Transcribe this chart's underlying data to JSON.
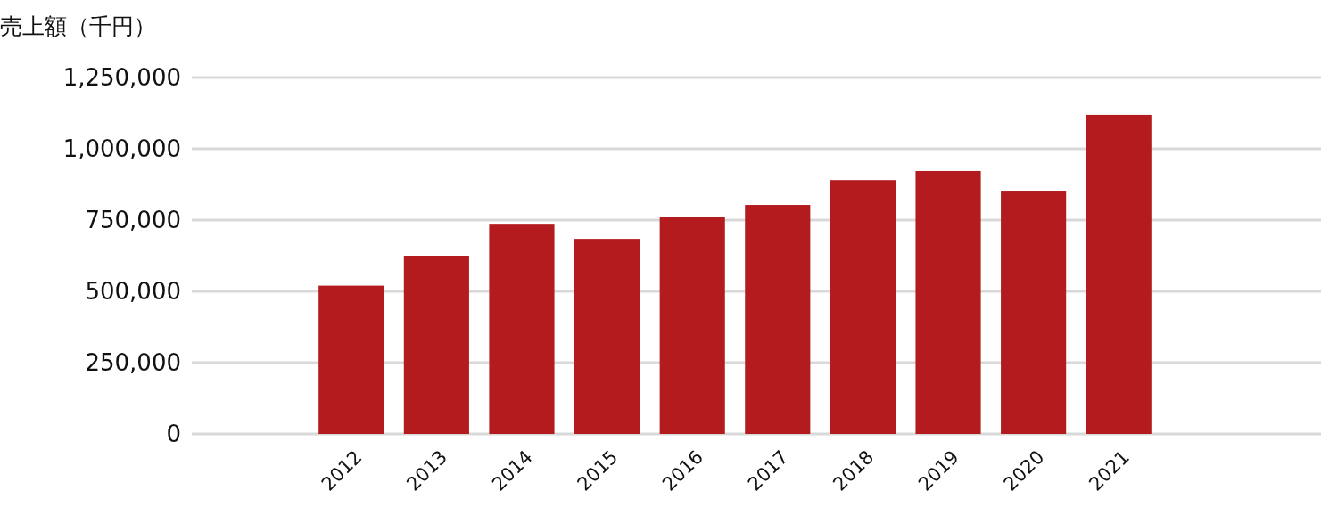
{
  "chart_data": {
    "type": "bar",
    "ylabel": "売上額（千円）",
    "categories": [
      "2012",
      "2013",
      "2014",
      "2015",
      "2016",
      "2017",
      "2018",
      "2019",
      "2020",
      "2021"
    ],
    "values": [
      520000,
      625000,
      737000,
      684000,
      762000,
      803000,
      890000,
      922000,
      853000,
      1119000
    ],
    "color": "#b31b1e",
    "ylim": [
      0,
      1250000
    ],
    "yticks": [
      {
        "value": 0,
        "label": "0"
      },
      {
        "value": 250000,
        "label": "250,000"
      },
      {
        "value": 500000,
        "label": "500,000"
      },
      {
        "value": 750000,
        "label": "750,000"
      },
      {
        "value": 1000000,
        "label": "1,000,000"
      },
      {
        "value": 1250000,
        "label": "1,250,000"
      }
    ],
    "grid": "y"
  }
}
